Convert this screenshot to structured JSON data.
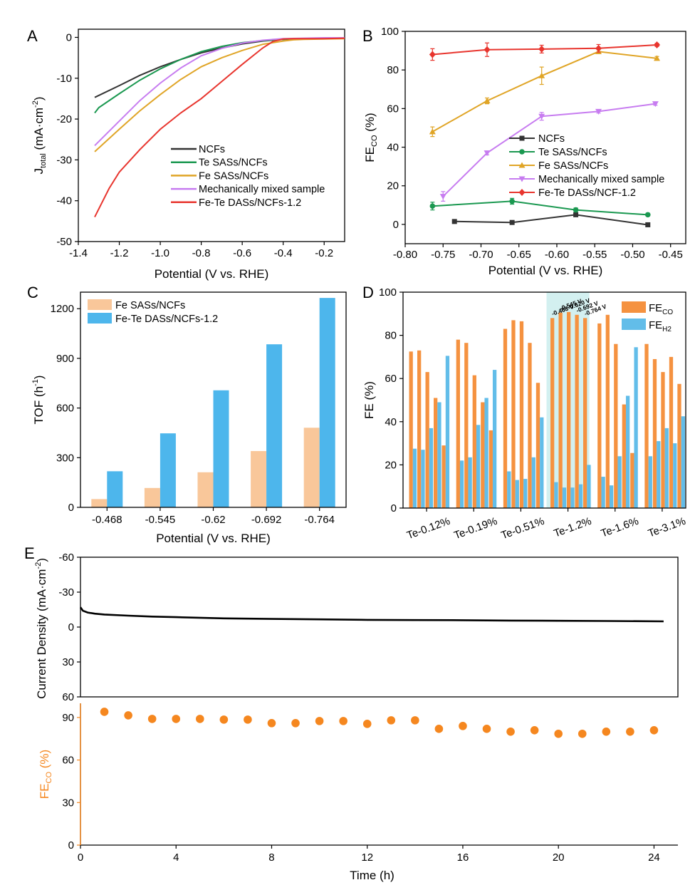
{
  "colors": {
    "ncfs": "#333333",
    "te": "#1a9850",
    "fe": "#e0a527",
    "mixed": "#c77cf0",
    "fete": "#e8352e",
    "fe_bar": "#f9c79a",
    "fete_bar": "#4db6ec",
    "fe_co_bar": "#f59240",
    "fe_h2_bar": "#62bde9",
    "highlight": "#d3f0f0",
    "stability_line": "#000000",
    "stability_dots": "#f5871f"
  },
  "chart_data": [
    {
      "id": "A",
      "panel_label": "A",
      "type": "line",
      "xlabel": "Potential (V vs. RHE)",
      "ylabel_main": "J",
      "ylabel_sub": "total",
      "ylabel_rest": " (mA·cm",
      "ylabel_sup": "-2",
      "ylabel_end": ")",
      "xlim": [
        -1.4,
        -0.1
      ],
      "ylim": [
        -50,
        2
      ],
      "xticks": [
        "-1.4",
        "-1.2",
        "-1.0",
        "-0.8",
        "-0.6",
        "-0.4",
        "-0.2"
      ],
      "yticks": [
        "0",
        "-10",
        "-20",
        "-30",
        "-40",
        "-50"
      ],
      "legend_position": "center-right",
      "series": [
        {
          "name": "NCFs",
          "color_key": "ncfs",
          "x": [
            -1.32,
            -1.2,
            -1.1,
            -1.0,
            -0.9,
            -0.8,
            -0.7,
            -0.6,
            -0.5,
            -0.4,
            -0.3,
            -0.2,
            -0.1
          ],
          "y": [
            -14.7,
            -11.8,
            -9.3,
            -7.2,
            -5.4,
            -3.8,
            -2.6,
            -1.6,
            -0.9,
            -0.5,
            -0.3,
            -0.2,
            -0.1
          ]
        },
        {
          "name": "Te SASs/NCFs",
          "color_key": "te",
          "x": [
            -1.32,
            -1.3,
            -1.2,
            -1.1,
            -1.0,
            -0.9,
            -0.8,
            -0.7,
            -0.6,
            -0.5,
            -0.4,
            -0.3,
            -0.2,
            -0.1
          ],
          "y": [
            -18.5,
            -17.2,
            -13.8,
            -10.5,
            -7.7,
            -5.4,
            -3.5,
            -2.2,
            -1.3,
            -0.8,
            -0.5,
            -0.3,
            -0.2,
            -0.1
          ]
        },
        {
          "name": "Fe SASs/NCFs",
          "color_key": "fe",
          "x": [
            -1.32,
            -1.2,
            -1.1,
            -1.0,
            -0.9,
            -0.8,
            -0.7,
            -0.6,
            -0.5,
            -0.4,
            -0.35,
            -0.3,
            -0.2,
            -0.1
          ],
          "y": [
            -28.0,
            -22.5,
            -18.0,
            -14.0,
            -10.3,
            -7.2,
            -5.0,
            -3.2,
            -1.7,
            -0.9,
            -0.6,
            -0.5,
            -0.4,
            -0.3
          ]
        },
        {
          "name": "Mechanically mixed sample",
          "color_key": "mixed",
          "x": [
            -1.32,
            -1.2,
            -1.1,
            -1.0,
            -0.9,
            -0.8,
            -0.7,
            -0.6,
            -0.5,
            -0.4,
            -0.3,
            -0.2,
            -0.1
          ],
          "y": [
            -26.5,
            -20.5,
            -15.5,
            -11.2,
            -7.5,
            -4.5,
            -2.7,
            -1.4,
            -0.7,
            -0.3,
            -0.2,
            -0.1,
            -0.1
          ]
        },
        {
          "name": "Fe-Te DASs/NCFs-1.2",
          "color_key": "fete",
          "x": [
            -1.32,
            -1.25,
            -1.2,
            -1.1,
            -1.0,
            -0.9,
            -0.8,
            -0.7,
            -0.6,
            -0.5,
            -0.45,
            -0.4,
            -0.35,
            -0.3,
            -0.2,
            -0.1
          ],
          "y": [
            -44.0,
            -37.0,
            -33.0,
            -27.5,
            -22.5,
            -18.5,
            -15.0,
            -10.8,
            -6.6,
            -2.6,
            -1.0,
            -0.4,
            -0.3,
            -0.3,
            -0.3,
            -0.2
          ]
        }
      ]
    },
    {
      "id": "B",
      "panel_label": "B",
      "type": "line",
      "xlabel": "Potential (V vs. RHE)",
      "ylabel_main": "FE",
      "ylabel_sub": "CO",
      "ylabel_rest": " (%)",
      "xlim": [
        -0.8,
        -0.43
      ],
      "ylim": [
        -10,
        100
      ],
      "xticks": [
        "-0.80",
        "-0.75",
        "-0.70",
        "-0.65",
        "-0.60",
        "-0.55",
        "-0.50",
        "-0.45"
      ],
      "yticks": [
        "0",
        "20",
        "40",
        "60",
        "80",
        "100"
      ],
      "legend_position": "center-right",
      "series": [
        {
          "name": "NCFs",
          "color_key": "ncfs",
          "marker": "square",
          "x": [
            -0.735,
            -0.659,
            -0.575,
            -0.48
          ],
          "y": [
            1.5,
            1.0,
            5.0,
            -0.2
          ],
          "err": [
            0.5,
            0.5,
            1.0,
            0.5
          ]
        },
        {
          "name": "Te SASs/NCFs",
          "color_key": "te",
          "marker": "circle",
          "x": [
            -0.764,
            -0.659,
            -0.575,
            -0.48
          ],
          "y": [
            9.5,
            12.0,
            7.5,
            5.0
          ],
          "err": [
            2.0,
            1.5,
            1.0,
            0.5
          ]
        },
        {
          "name": "Fe SASs/NCFs",
          "color_key": "fe",
          "marker": "triangle",
          "x": [
            -0.764,
            -0.692,
            -0.62,
            -0.545,
            -0.468
          ],
          "y": [
            48.0,
            64.0,
            77.0,
            89.5,
            86.0
          ],
          "err": [
            2.5,
            1.5,
            4.5,
            1.0,
            1.0
          ]
        },
        {
          "name": "Mechanically mixed sample",
          "color_key": "mixed",
          "marker": "triangle-down",
          "x": [
            -0.75,
            -0.692,
            -0.62,
            -0.545,
            -0.47
          ],
          "y": [
            14.5,
            37.0,
            56.0,
            58.5,
            62.5
          ],
          "err": [
            2.5,
            1.0,
            2.0,
            0.8,
            0.8
          ]
        },
        {
          "name": "Fe-Te DASs/NCF-1.2",
          "color_key": "fete",
          "marker": "diamond",
          "x": [
            -0.764,
            -0.692,
            -0.62,
            -0.545,
            -0.468
          ],
          "y": [
            88.0,
            90.5,
            90.8,
            91.2,
            93.0
          ],
          "err": [
            3.0,
            3.5,
            2.0,
            2.0,
            0.8
          ]
        }
      ]
    },
    {
      "id": "C",
      "panel_label": "C",
      "type": "bar",
      "xlabel": "Potential (V vs. RHE)",
      "ylabel_main": "TOF (h",
      "ylabel_sup": "-1",
      "ylabel_end": ")",
      "categories": [
        "-0.468",
        "-0.545",
        "-0.62",
        "-0.692",
        "-0.764"
      ],
      "ylim": [
        0,
        1300
      ],
      "yticks": [
        "0",
        "300",
        "600",
        "900",
        "1200"
      ],
      "legend_position": "top-left",
      "series": [
        {
          "name": "Fe SASs/NCFs",
          "color_key": "fe_bar",
          "values": [
            50,
            117,
            212,
            340,
            481
          ]
        },
        {
          "name": "Fe-Te DASs/NCFs-1.2",
          "color_key": "fete_bar",
          "values": [
            218,
            447,
            707,
            985,
            1265
          ]
        }
      ]
    },
    {
      "id": "D",
      "panel_label": "D",
      "type": "bar",
      "ylabel": "FE (%)",
      "ylim": [
        0,
        100
      ],
      "yticks": [
        "0",
        "20",
        "40",
        "60",
        "80",
        "100"
      ],
      "legend_position": "top-right",
      "legend": [
        {
          "main": "FE",
          "sub": "CO",
          "color_key": "fe_co_bar"
        },
        {
          "main": "FE",
          "sub": "H2",
          "color_key": "fe_h2_bar"
        }
      ],
      "highlight_group": 3,
      "highlight_labels": [
        "-0.468 V",
        "-0.545 V",
        "-0.620 V",
        "-0.692 V",
        "-0.764 V"
      ],
      "groups": [
        {
          "label": "Te-0.12%",
          "fe_co": [
            72.5,
            73.0,
            63.0,
            51.0,
            29.0
          ],
          "fe_h2": [
            27.5,
            27.0,
            37.0,
            49.0,
            70.5
          ]
        },
        {
          "label": "Te-0.19%",
          "fe_co": [
            78.0,
            76.5,
            61.5,
            49.0,
            36.0
          ],
          "fe_h2": [
            22.0,
            23.5,
            38.5,
            51.0,
            64.0
          ]
        },
        {
          "label": "Te-0.51%",
          "fe_co": [
            83.0,
            87.0,
            86.5,
            76.5,
            58.0
          ],
          "fe_h2": [
            17.0,
            13.0,
            13.5,
            23.5,
            42.0
          ]
        },
        {
          "label": "Te-1.2%",
          "fe_co": [
            88.0,
            90.5,
            90.8,
            89.5,
            88.0
          ],
          "fe_h2": [
            12.0,
            9.5,
            9.5,
            11.0,
            20.0
          ]
        },
        {
          "label": "Te-1.6%",
          "fe_co": [
            85.5,
            89.5,
            76.0,
            48.0,
            25.5
          ],
          "fe_h2": [
            14.5,
            10.5,
            24.0,
            52.0,
            74.5
          ]
        },
        {
          "label": "Te-3.1%",
          "fe_co": [
            76.0,
            69.0,
            63.0,
            70.0,
            57.5
          ],
          "fe_h2": [
            24.0,
            31.0,
            37.0,
            30.0,
            42.5
          ]
        }
      ]
    },
    {
      "id": "E",
      "panel_label": "E",
      "type": "line+scatter",
      "xlabel": "Time (h)",
      "xlim": [
        0,
        25
      ],
      "xticks": [
        "0",
        "4",
        "8",
        "12",
        "16",
        "20",
        "24"
      ],
      "top": {
        "ylabel_main": "Current Density (mA·cm",
        "ylabel_sup": "-2",
        "ylabel_end": ")",
        "ylim_top": -60,
        "ylim_bottom": 60,
        "yticks": [
          "-60",
          "-30",
          "0",
          "30",
          "60"
        ],
        "x": [
          0,
          0.1,
          0.3,
          0.6,
          1,
          2,
          3,
          4,
          6,
          8,
          10,
          12,
          14,
          16,
          18,
          20,
          22,
          24.4
        ],
        "y": [
          -17,
          -14,
          -12.5,
          -11.5,
          -10.8,
          -9.8,
          -9,
          -8.5,
          -7.5,
          -7,
          -6.6,
          -6.2,
          -6,
          -5.9,
          -5.6,
          -5.4,
          -5.2,
          -4.9
        ]
      },
      "bottom": {
        "ylabel_main": "FE",
        "ylabel_sub": "CO",
        "ylabel_rest": " (%)",
        "ylim": [
          0,
          100
        ],
        "yticks": [
          "0",
          "30",
          "60",
          "90"
        ],
        "x": [
          1,
          2,
          3,
          4,
          5,
          6,
          7,
          8,
          9,
          10,
          11,
          12,
          13,
          14,
          15,
          16,
          17,
          18,
          19,
          20,
          21,
          22,
          23,
          24
        ],
        "y": [
          94,
          91.5,
          89,
          89,
          89,
          88.5,
          88.5,
          86,
          86,
          87.5,
          87.5,
          85.5,
          88,
          88,
          82,
          84,
          82,
          80,
          81,
          78.5,
          78.5,
          80,
          80,
          81
        ]
      }
    }
  ]
}
